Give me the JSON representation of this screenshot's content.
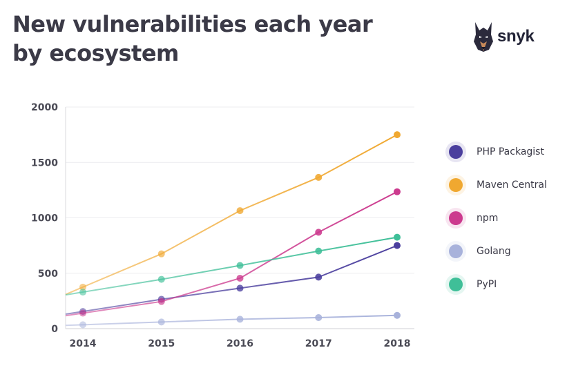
{
  "header": {
    "title_line1": "New vulnerabilities each year",
    "title_line2": "by ecosystem"
  },
  "brand": {
    "name": "snyk",
    "icon": "doberman-logo-icon"
  },
  "chart_data": {
    "type": "line",
    "title": "New vulnerabilities each year by ecosystem",
    "xlabel": "",
    "ylabel": "",
    "categories": [
      "2014",
      "2015",
      "2016",
      "2017",
      "2018"
    ],
    "ylim": [
      0,
      2000
    ],
    "yticks": [
      "0",
      "500",
      "1000",
      "1500",
      "2000"
    ],
    "grid": true,
    "legend_position": "right",
    "series": [
      {
        "name": "PHP Packagist",
        "color": "#4b3f9e",
        "values": [
          155,
          265,
          365,
          465,
          750
        ]
      },
      {
        "name": "Maven Central",
        "color": "#f0a830",
        "values": [
          375,
          675,
          1065,
          1365,
          1750
        ]
      },
      {
        "name": "npm",
        "color": "#cc3a8e",
        "values": [
          140,
          245,
          455,
          870,
          1235
        ]
      },
      {
        "name": "Golang",
        "color": "#a8b2db",
        "values": [
          35,
          60,
          85,
          100,
          120
        ]
      },
      {
        "name": "PyPI",
        "color": "#3fbf98",
        "values": [
          330,
          445,
          570,
          700,
          825
        ]
      }
    ]
  }
}
